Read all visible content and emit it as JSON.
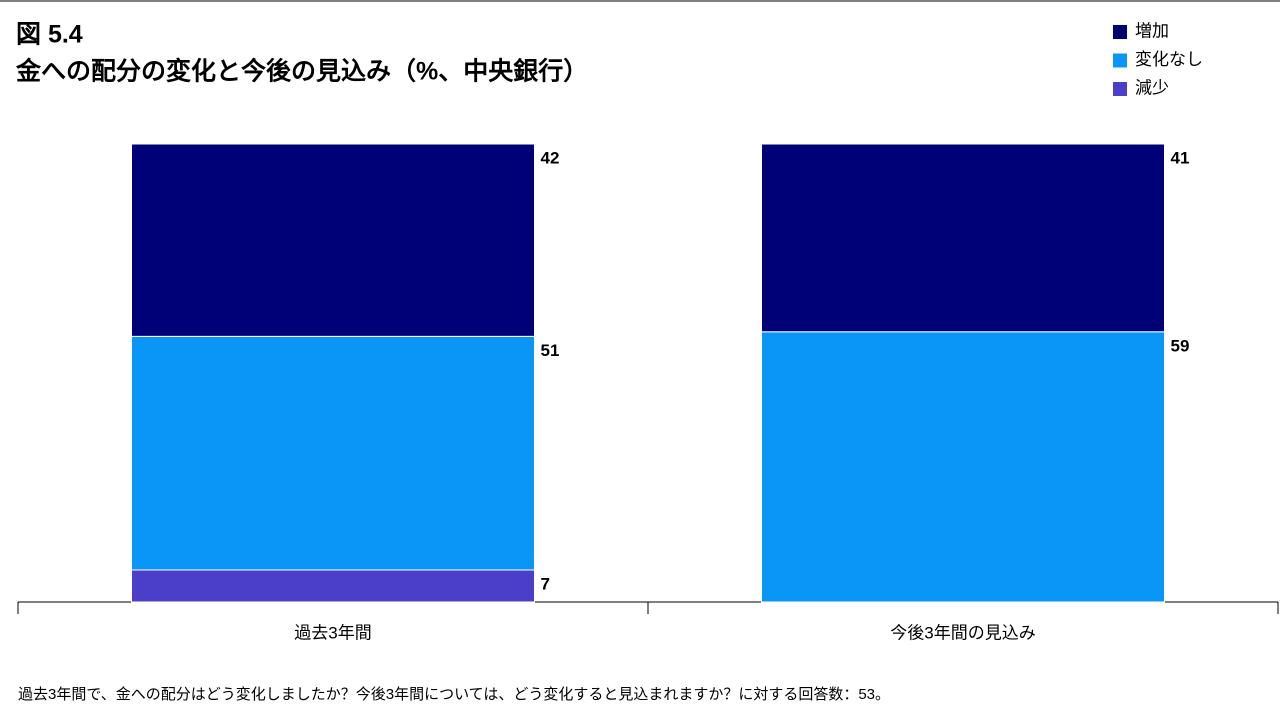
{
  "chart_data": {
    "type": "stacked_bar",
    "figure_label": "図 5.4",
    "title": "金への配分の変化と今後の見込み（%、中央銀行）",
    "categories": [
      "過去3年間",
      "今後3年間の見込み"
    ],
    "series": [
      {
        "name": "減少",
        "color": "#4b3fc9",
        "values": [
          7,
          null
        ]
      },
      {
        "name": "変化なし",
        "color": "#0996f7",
        "values": [
          51,
          59
        ]
      },
      {
        "name": "増加",
        "color": "#000077",
        "values": [
          42,
          41
        ]
      }
    ],
    "ylim": [
      0,
      100
    ],
    "legend": "top-right",
    "footnote": "過去3年間で、金への配分はどう変化しましたか？今後3年間については、どう変化すると見込まれますか？に対する回答数：53。"
  }
}
